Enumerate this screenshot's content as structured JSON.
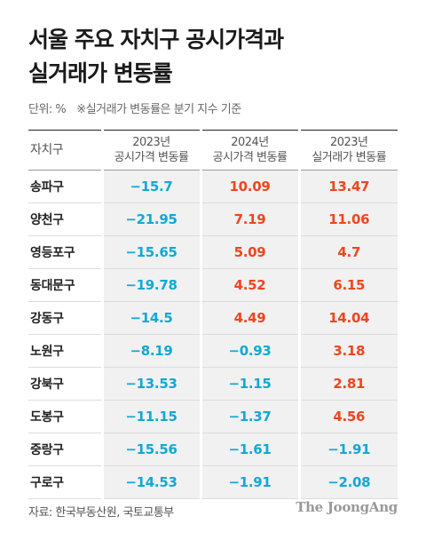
{
  "title_lines": [
    "서울 주요 자치구 공시가격과",
    "실거래가 변동률"
  ],
  "unit_label": "단위: %",
  "unit_note": "※실거래가 변동률은 분기 지수 기준",
  "source": "자료: 한국부동산원, 국토교통부",
  "brand": "The JoongAng",
  "colors": {
    "negative": "#11a8d6",
    "positive": "#f0451e",
    "cell_bg": "#f1f1f1"
  },
  "chart_data": {
    "type": "table",
    "columns": [
      {
        "label": "자치구",
        "label_lines": [
          "자치구"
        ]
      },
      {
        "label": "2023년 공시가격 변동률",
        "label_lines": [
          "2023년",
          "공시가격 변동률"
        ]
      },
      {
        "label": "2024년 공시가격 변동률",
        "label_lines": [
          "2024년",
          "공시가격 변동률"
        ]
      },
      {
        "label": "2023년 실거래가 변동률",
        "label_lines": [
          "2023년",
          "실거래가 변동률"
        ]
      }
    ],
    "rows": [
      {
        "district": "송파구",
        "values": [
          -15.7,
          10.09,
          13.47
        ],
        "display": [
          "−15.7",
          "10.09",
          "13.47"
        ]
      },
      {
        "district": "양천구",
        "values": [
          -21.95,
          7.19,
          11.06
        ],
        "display": [
          "−21.95",
          "7.19",
          "11.06"
        ]
      },
      {
        "district": "영등포구",
        "values": [
          -15.65,
          5.09,
          4.7
        ],
        "display": [
          "−15.65",
          "5.09",
          "4.7"
        ]
      },
      {
        "district": "동대문구",
        "values": [
          -19.78,
          4.52,
          6.15
        ],
        "display": [
          "−19.78",
          "4.52",
          "6.15"
        ]
      },
      {
        "district": "강동구",
        "values": [
          -14.5,
          4.49,
          14.04
        ],
        "display": [
          "−14.5",
          "4.49",
          "14.04"
        ]
      },
      {
        "district": "노원구",
        "values": [
          -8.19,
          -0.93,
          3.18
        ],
        "display": [
          "−8.19",
          "−0.93",
          "3.18"
        ]
      },
      {
        "district": "강북구",
        "values": [
          -13.53,
          -1.15,
          2.81
        ],
        "display": [
          "−13.53",
          "−1.15",
          "2.81"
        ]
      },
      {
        "district": "도봉구",
        "values": [
          -11.15,
          -1.37,
          4.56
        ],
        "display": [
          "−11.15",
          "−1.37",
          "4.56"
        ]
      },
      {
        "district": "중랑구",
        "values": [
          -15.56,
          -1.61,
          -1.91
        ],
        "display": [
          "−15.56",
          "−1.61",
          "−1.91"
        ]
      },
      {
        "district": "구로구",
        "values": [
          -14.53,
          -1.91,
          -2.08
        ],
        "display": [
          "−14.53",
          "−1.91",
          "−2.08"
        ]
      }
    ]
  }
}
